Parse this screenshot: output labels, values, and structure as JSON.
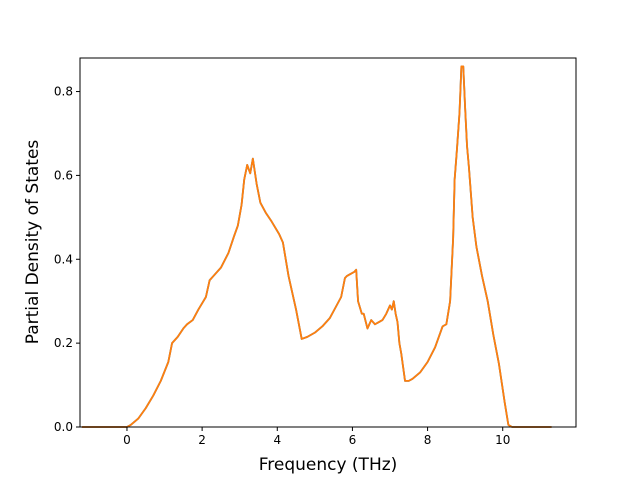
{
  "chart_data": {
    "type": "line",
    "title": "",
    "xlabel": "Frequency (THz)",
    "ylabel": "Partial Density of States",
    "xlim": [
      -1.25,
      11.95
    ],
    "ylim": [
      0.0,
      0.88
    ],
    "xticks": [
      0,
      2,
      4,
      6,
      8,
      10
    ],
    "yticks": [
      0.0,
      0.2,
      0.4,
      0.6,
      0.8
    ],
    "xtick_labels": [
      "0",
      "2",
      "4",
      "6",
      "8",
      "10"
    ],
    "ytick_labels": [
      "0.0",
      "0.2",
      "0.4",
      "0.6",
      "0.8"
    ],
    "grid": false,
    "legend": "none",
    "series": [
      {
        "color": "#ff7f0e",
        "shadow_color": "#1f77b4",
        "x": [
          -1.2,
          0.0,
          0.1,
          0.3,
          0.5,
          0.7,
          0.9,
          1.1,
          1.2,
          1.35,
          1.5,
          1.6,
          1.75,
          1.9,
          2.0,
          2.1,
          2.2,
          2.3,
          2.5,
          2.7,
          2.85,
          2.95,
          3.05,
          3.12,
          3.2,
          3.28,
          3.35,
          3.45,
          3.55,
          3.7,
          3.85,
          4.05,
          4.15,
          4.3,
          4.5,
          4.65,
          4.8,
          5.0,
          5.2,
          5.4,
          5.55,
          5.7,
          5.8,
          5.85,
          5.95,
          6.05,
          6.1,
          6.15,
          6.25,
          6.3,
          6.4,
          6.5,
          6.6,
          6.7,
          6.8,
          6.9,
          7.0,
          7.05,
          7.1,
          7.15,
          7.2,
          7.25,
          7.3,
          7.4,
          7.5,
          7.6,
          7.8,
          8.0,
          8.2,
          8.4,
          8.5,
          8.6,
          8.68,
          8.72,
          8.78,
          8.85,
          8.9,
          8.95,
          9.0,
          9.05,
          9.1,
          9.2,
          9.3,
          9.45,
          9.6,
          9.75,
          9.9,
          10.05,
          10.15,
          10.25,
          10.35,
          10.5,
          11.3
        ],
        "y": [
          0.0,
          0.0,
          0.005,
          0.02,
          0.045,
          0.075,
          0.11,
          0.155,
          0.2,
          0.215,
          0.235,
          0.245,
          0.255,
          0.28,
          0.295,
          0.31,
          0.35,
          0.36,
          0.38,
          0.415,
          0.455,
          0.48,
          0.53,
          0.59,
          0.625,
          0.605,
          0.64,
          0.58,
          0.535,
          0.51,
          0.49,
          0.46,
          0.44,
          0.36,
          0.28,
          0.21,
          0.215,
          0.225,
          0.24,
          0.26,
          0.285,
          0.31,
          0.355,
          0.36,
          0.365,
          0.37,
          0.375,
          0.3,
          0.27,
          0.27,
          0.235,
          0.255,
          0.245,
          0.25,
          0.255,
          0.27,
          0.29,
          0.28,
          0.3,
          0.27,
          0.25,
          0.2,
          0.175,
          0.11,
          0.11,
          0.115,
          0.13,
          0.155,
          0.19,
          0.24,
          0.245,
          0.3,
          0.45,
          0.59,
          0.66,
          0.75,
          0.86,
          0.86,
          0.76,
          0.67,
          0.62,
          0.5,
          0.43,
          0.36,
          0.3,
          0.22,
          0.15,
          0.06,
          0.005,
          0.0,
          0.0,
          0.0,
          0.0
        ]
      }
    ]
  }
}
